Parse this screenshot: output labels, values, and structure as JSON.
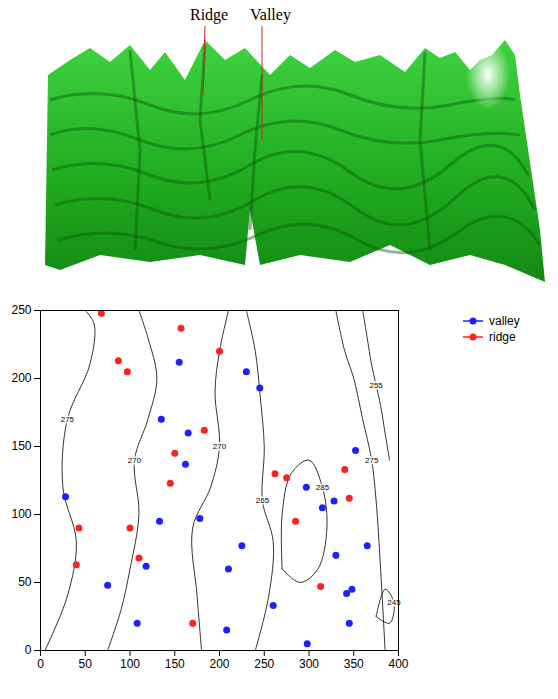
{
  "figure": {
    "annotations": [
      "Ridge",
      "Valley"
    ]
  },
  "chart_data": {
    "type": "scatter",
    "xlim": [
      0,
      400
    ],
    "xticks": [
      0,
      50,
      100,
      150,
      200,
      250,
      300,
      350,
      400
    ],
    "ylim": [
      0,
      250
    ],
    "yticks": [
      0,
      50,
      100,
      150,
      200,
      250
    ],
    "legend": "right",
    "series": [
      {
        "name": "valley",
        "color": "#1f1fff",
        "marker": "circle",
        "x": [
          155,
          245,
          230,
          135,
          165,
          162,
          28,
          133,
          178,
          297,
          315,
          328,
          352,
          225,
          210,
          118,
          75,
          330,
          342,
          348,
          365,
          345,
          108,
          208,
          260,
          298
        ],
        "y": [
          212,
          193,
          205,
          170,
          160,
          137,
          113,
          95,
          97,
          120,
          105,
          110,
          147,
          77,
          60,
          62,
          48,
          70,
          42,
          45,
          77,
          20,
          20,
          15,
          33,
          5
        ]
      },
      {
        "name": "ridge",
        "color": "#ff2020",
        "marker": "circle",
        "x": [
          68,
          157,
          200,
          87,
          97,
          183,
          150,
          145,
          262,
          275,
          340,
          345,
          285,
          43,
          100,
          40,
          110,
          313,
          170
        ],
        "y": [
          248,
          237,
          220,
          213,
          205,
          162,
          145,
          123,
          130,
          127,
          133,
          112,
          95,
          90,
          90,
          63,
          68,
          47,
          20
        ]
      }
    ],
    "contours": [
      {
        "level": 275,
        "x": [
          5,
          30,
          40,
          25,
          30,
          55,
          60,
          50
        ],
        "y": [
          0,
          40,
          80,
          120,
          170,
          210,
          240,
          250
        ]
      },
      {
        "level": 270,
        "x": [
          75,
          90,
          100,
          110,
          105,
          120,
          130,
          120,
          110
        ],
        "y": [
          0,
          30,
          60,
          100,
          140,
          170,
          200,
          230,
          250
        ]
      },
      {
        "level": 270,
        "x": [
          180,
          175,
          170,
          190,
          200,
          195,
          200,
          210
        ],
        "y": [
          0,
          40,
          90,
          120,
          150,
          190,
          220,
          250
        ]
      },
      {
        "level": 265,
        "x": [
          230,
          240,
          245,
          250,
          248,
          260,
          255,
          240
        ],
        "y": [
          250,
          220,
          190,
          150,
          110,
          80,
          40,
          0
        ]
      },
      {
        "level": 285,
        "x": [
          270,
          290,
          310,
          320,
          315,
          300,
          280,
          270,
          270
        ],
        "y": [
          60,
          50,
          60,
          90,
          120,
          140,
          130,
          100,
          60
        ]
      },
      {
        "level": 275,
        "x": [
          330,
          340,
          350,
          360,
          370,
          375,
          380,
          385
        ],
        "y": [
          250,
          220,
          200,
          170,
          140,
          110,
          60,
          0
        ]
      },
      {
        "level": 255,
        "x": [
          360,
          365,
          370,
          375,
          380,
          385,
          390
        ],
        "y": [
          250,
          230,
          210,
          195,
          180,
          160,
          140
        ]
      },
      {
        "level": 245,
        "x": [
          375,
          390,
          395,
          385,
          375
        ],
        "y": [
          25,
          20,
          35,
          45,
          25
        ]
      }
    ]
  }
}
